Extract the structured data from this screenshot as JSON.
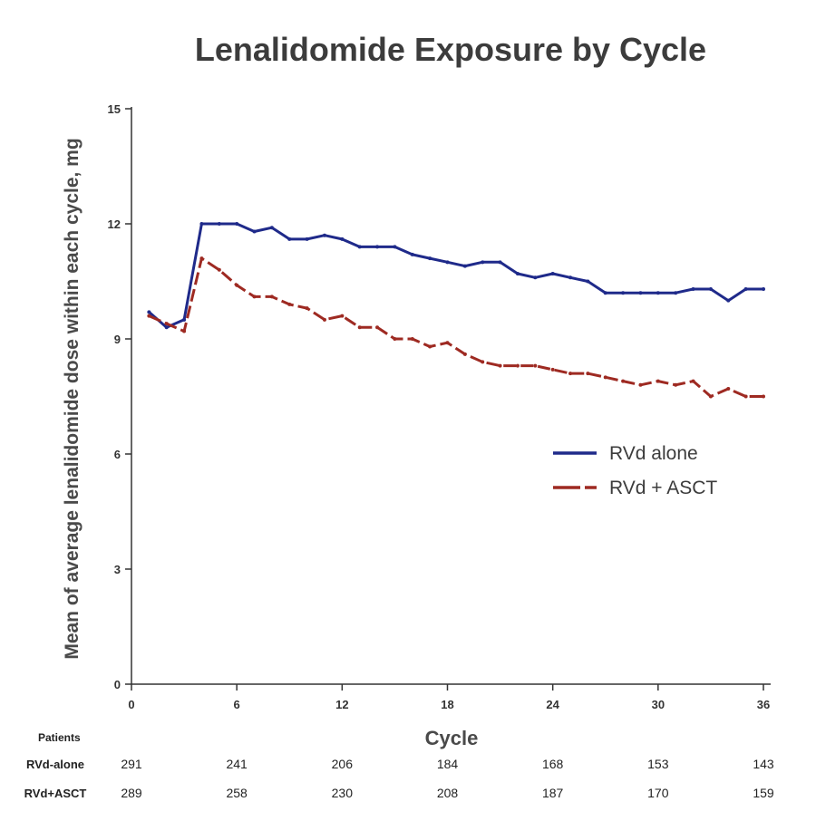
{
  "chart_data": {
    "type": "line",
    "title": "Lenalidomide Exposure by Cycle",
    "xlabel": "Cycle",
    "ylabel": "Mean of average lenalidomide dose within each cycle, mg",
    "xlim": [
      0,
      36
    ],
    "ylim": [
      0,
      15
    ],
    "xticks": [
      0,
      6,
      12,
      18,
      24,
      30,
      36
    ],
    "yticks": [
      0,
      3,
      6,
      9,
      12,
      15
    ],
    "x": [
      1,
      2,
      3,
      4,
      5,
      6,
      7,
      8,
      9,
      10,
      11,
      12,
      13,
      14,
      15,
      16,
      17,
      18,
      19,
      20,
      21,
      22,
      23,
      24,
      25,
      26,
      27,
      28,
      29,
      30,
      31,
      32,
      33,
      34,
      35,
      36
    ],
    "series": [
      {
        "name": "RVd alone",
        "color": "#1f2a8a",
        "style": "solid",
        "values": [
          9.7,
          9.3,
          9.5,
          12.0,
          12.0,
          12.0,
          11.8,
          11.9,
          11.6,
          11.6,
          11.7,
          11.6,
          11.4,
          11.4,
          11.4,
          11.2,
          11.1,
          11.0,
          10.9,
          11.0,
          11.0,
          10.7,
          10.6,
          10.7,
          10.6,
          10.5,
          10.2,
          10.2,
          10.2,
          10.2,
          10.2,
          10.3,
          10.3,
          10.0,
          10.3,
          10.3
        ]
      },
      {
        "name": "RVd + ASCT",
        "color": "#9e2a22",
        "style": "dashed",
        "values": [
          9.6,
          9.4,
          9.2,
          11.1,
          10.8,
          10.4,
          10.1,
          10.1,
          9.9,
          9.8,
          9.5,
          9.6,
          9.3,
          9.3,
          9.0,
          9.0,
          8.8,
          8.9,
          8.6,
          8.4,
          8.3,
          8.3,
          8.3,
          8.2,
          8.1,
          8.1,
          8.0,
          7.9,
          7.8,
          7.9,
          7.8,
          7.9,
          7.5,
          7.7,
          7.5,
          7.5
        ]
      }
    ],
    "legend_position": "center-right",
    "risk_table": {
      "header": "Patients",
      "rows": [
        {
          "name": "RVd-alone",
          "values": [
            "291",
            "241",
            "206",
            "184",
            "168",
            "153",
            "143"
          ]
        },
        {
          "name": "RVd+ASCT",
          "values": [
            "289",
            "258",
            "230",
            "208",
            "187",
            "170",
            "159"
          ]
        }
      ]
    }
  }
}
